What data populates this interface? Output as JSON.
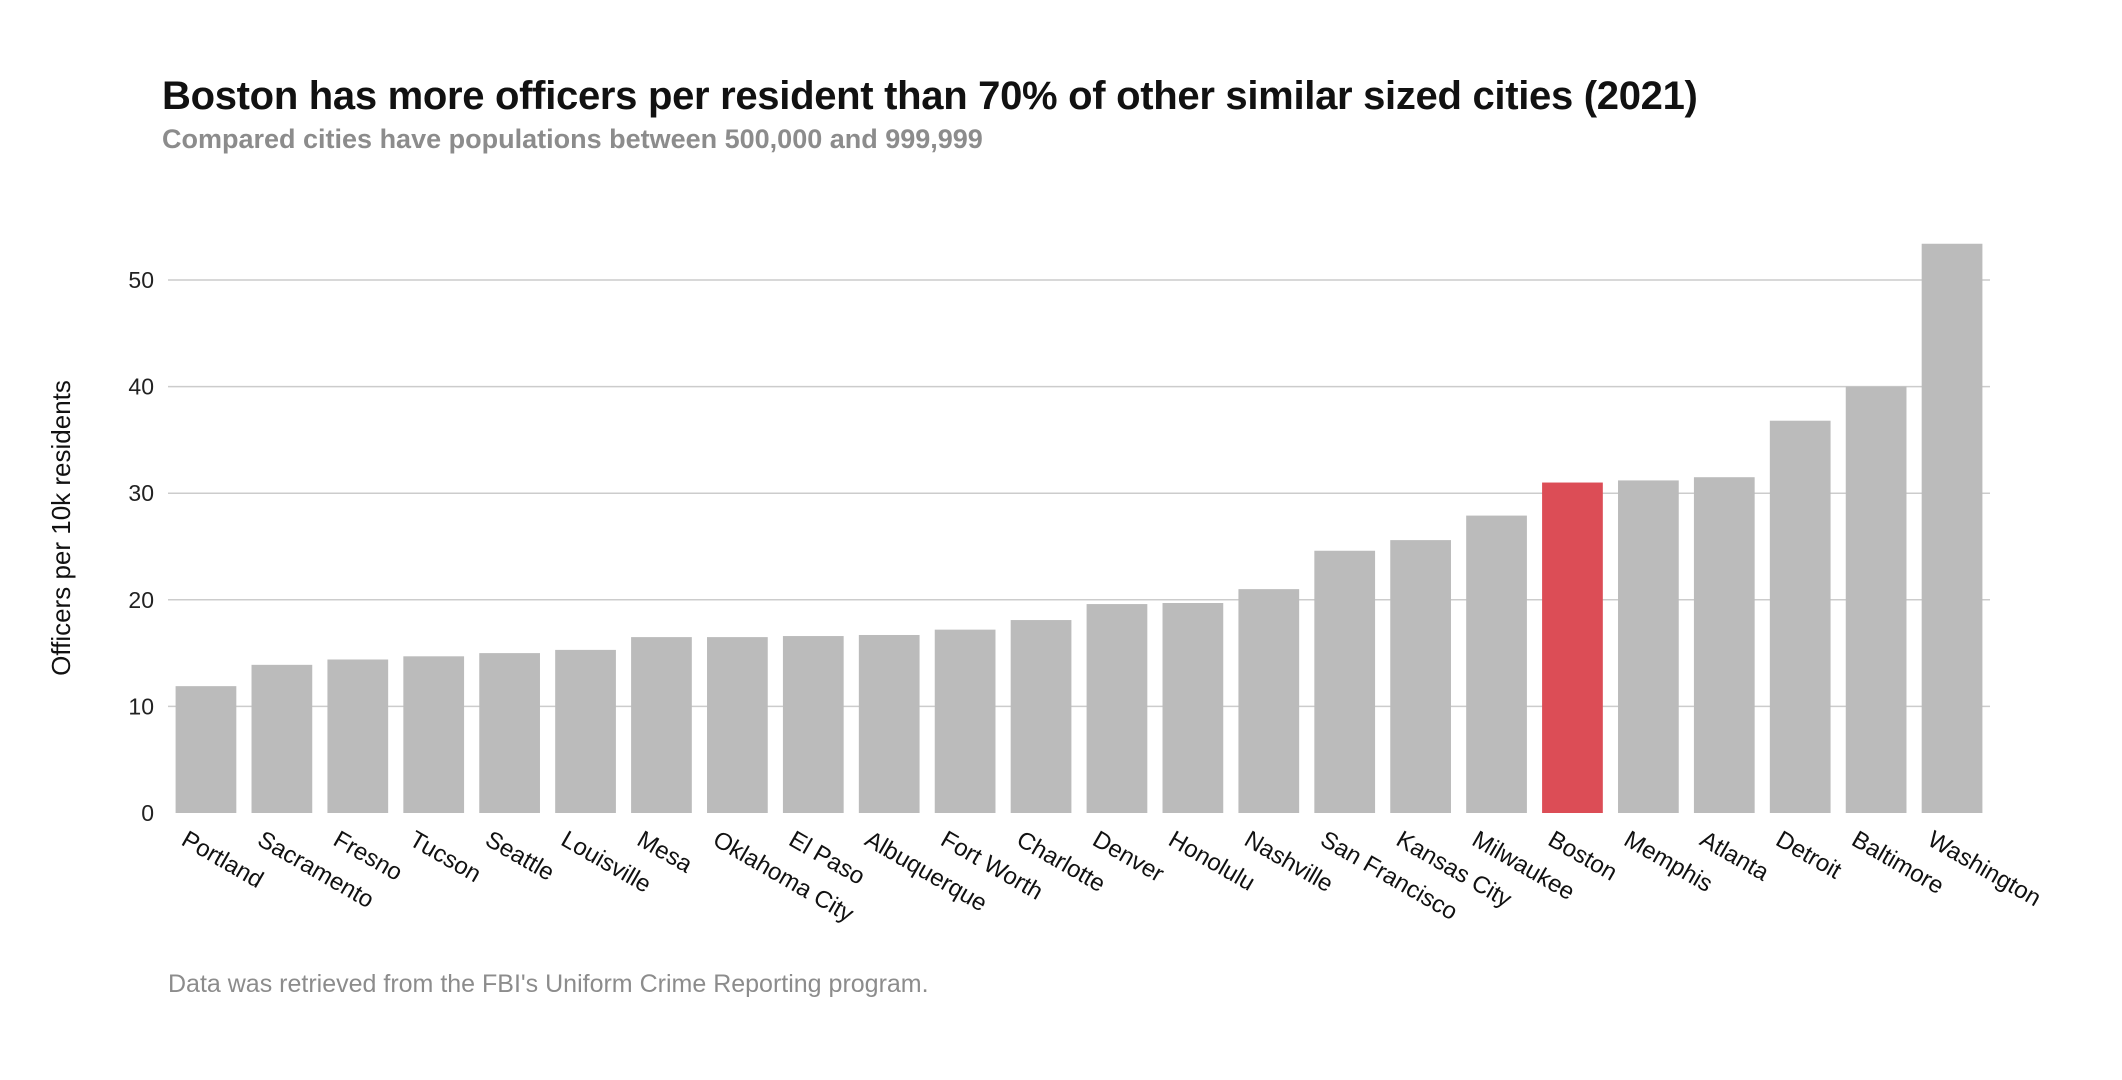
{
  "title": "Boston has more officers per resident than 70% of other similar sized cities (2021)",
  "subtitle": "Compared cities have populations between 500,000 and 999,999",
  "source": "Data was retrieved from the FBI's Uniform Crime Reporting program.",
  "colors": {
    "bar": "#bbbbbb",
    "highlight": "#dc4d56",
    "grid": "#cccccc"
  },
  "chart_data": {
    "type": "bar",
    "title": "Boston has more officers per resident than 70% of other similar sized cities (2021)",
    "subtitle": "Compared cities have populations between 500,000 and 999,999",
    "xlabel": "",
    "ylabel": "Officers per 10k residents",
    "ylim": [
      0,
      55
    ],
    "yticks": [
      0,
      10,
      20,
      30,
      40,
      50
    ],
    "grid": true,
    "legend": "none",
    "highlight": "Boston",
    "categories": [
      "Portland",
      "Sacramento",
      "Fresno",
      "Tucson",
      "Seattle",
      "Louisville",
      "Mesa",
      "Oklahoma City",
      "El Paso",
      "Albuquerque",
      "Fort Worth",
      "Charlotte",
      "Denver",
      "Honolulu",
      "Nashville",
      "San Francisco",
      "Kansas City",
      "Milwaukee",
      "Boston",
      "Memphis",
      "Atlanta",
      "Detroit",
      "Baltimore",
      "Washington"
    ],
    "values": [
      11.9,
      13.9,
      14.4,
      14.7,
      15.0,
      15.3,
      16.5,
      16.5,
      16.6,
      16.7,
      17.2,
      18.1,
      19.6,
      19.7,
      21.0,
      24.6,
      25.6,
      27.9,
      31.0,
      31.2,
      31.5,
      36.8,
      40.0,
      53.4
    ]
  }
}
